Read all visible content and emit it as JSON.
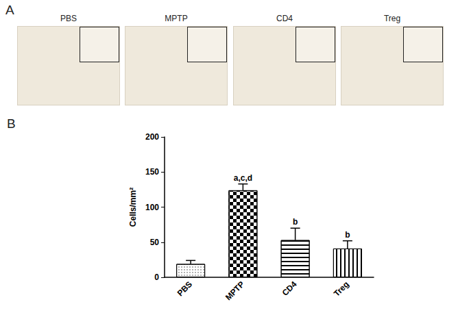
{
  "panel_labels": [
    "A",
    "B"
  ],
  "micrograph_titles": [
    "PBS",
    "MPTP",
    "CD4",
    "Treg"
  ],
  "chart_data": {
    "type": "bar",
    "categories": [
      "PBS",
      "MPTP",
      "CD4",
      "Treg"
    ],
    "values": [
      19,
      124,
      53,
      41
    ],
    "errors": [
      5,
      9,
      17,
      11
    ],
    "annotations": [
      null,
      "a,c,d",
      "b",
      "b"
    ],
    "y_label": "Cells/mm²",
    "ylim": [
      0,
      200
    ],
    "yticks": [
      0,
      50,
      100,
      150,
      200
    ],
    "grid": false
  }
}
